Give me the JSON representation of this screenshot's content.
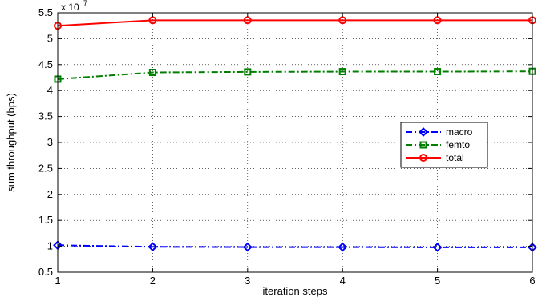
{
  "chart_data": {
    "type": "line",
    "title": "",
    "xlabel": "iteration steps",
    "ylabel": "sum throughput (bps)",
    "y_exponent_prefix": "x 10",
    "y_exponent": "7",
    "x": [
      1,
      2,
      3,
      4,
      5,
      6
    ],
    "xlim": [
      1,
      6
    ],
    "ylim": [
      0.5,
      5.5
    ],
    "xticks": [
      1,
      2,
      3,
      4,
      5,
      6
    ],
    "yticks": [
      0.5,
      1,
      1.5,
      2,
      2.5,
      3,
      3.5,
      4,
      4.5,
      5,
      5.5
    ],
    "grid": true,
    "legend_position": "right",
    "series": [
      {
        "name": "macro",
        "color": "#0000ff",
        "marker": "diamond",
        "line_style": "dash-dot",
        "values": [
          1.02,
          0.99,
          0.985,
          0.985,
          0.98,
          0.98
        ]
      },
      {
        "name": "femto",
        "color": "#007f00",
        "marker": "square",
        "line_style": "dash-dot",
        "values": [
          4.22,
          4.35,
          4.36,
          4.365,
          4.365,
          4.37
        ]
      },
      {
        "name": "total",
        "color": "#ff0000",
        "marker": "circle",
        "line_style": "solid",
        "values": [
          5.25,
          5.355,
          5.355,
          5.355,
          5.355,
          5.355
        ]
      }
    ]
  }
}
